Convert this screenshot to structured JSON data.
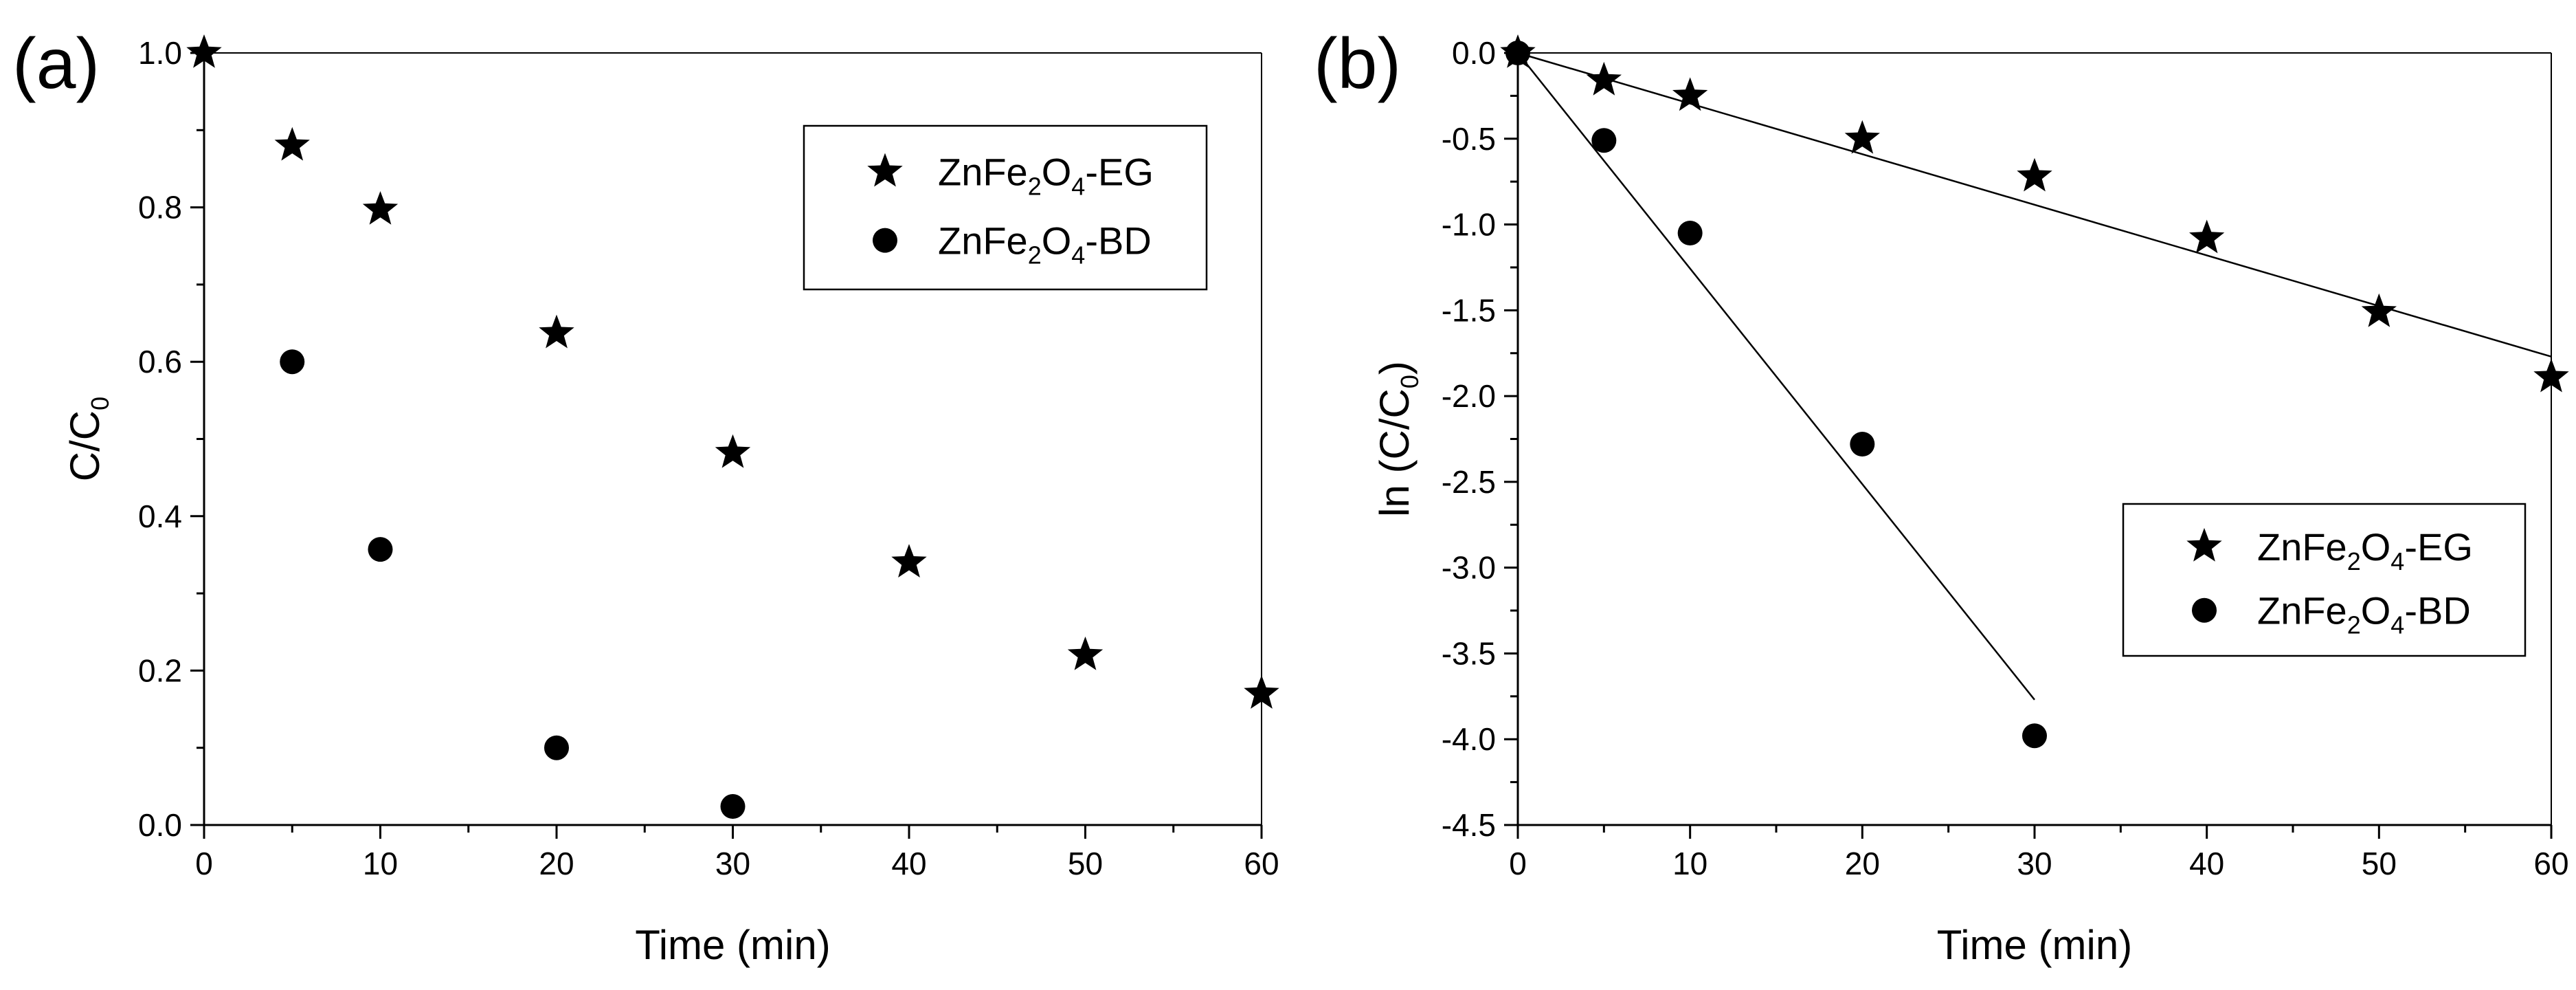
{
  "chart_data": [
    {
      "type": "scatter",
      "panel_label": "(a)",
      "title": "",
      "xlabel": "Time (min)",
      "ylabel": "C/C0",
      "ylabel_parts": {
        "base": "C/C",
        "sub": "0"
      },
      "xlim": [
        0,
        60
      ],
      "ylim": [
        0,
        1.0
      ],
      "xticks": [
        0,
        10,
        20,
        30,
        40,
        50,
        60
      ],
      "yticks": [
        0.0,
        0.2,
        0.4,
        0.6,
        0.8,
        1.0
      ],
      "xtick_labels": [
        "0",
        "10",
        "20",
        "30",
        "40",
        "50",
        "60"
      ],
      "ytick_labels": [
        "0.0",
        "0.2",
        "0.4",
        "0.6",
        "0.8",
        "1.0"
      ],
      "legend_position": "top-right",
      "series": [
        {
          "name": "ZnFe2O4-EG",
          "label_parts": [
            "ZnFe",
            "2",
            "O",
            "4",
            "-EG"
          ],
          "marker": "star",
          "x": [
            0,
            5,
            10,
            20,
            30,
            40,
            50,
            60
          ],
          "y": [
            1.0,
            0.88,
            0.797,
            0.637,
            0.482,
            0.34,
            0.22,
            0.17
          ]
        },
        {
          "name": "ZnFe2O4-BD",
          "label_parts": [
            "ZnFe",
            "2",
            "O",
            "4",
            "-BD"
          ],
          "marker": "circle",
          "x": [
            5,
            10,
            20,
            30
          ],
          "y": [
            0.6,
            0.357,
            0.1,
            0.024
          ]
        }
      ]
    },
    {
      "type": "scatter",
      "panel_label": "(b)",
      "title": "",
      "xlabel": "Time (min)",
      "ylabel": "ln (C/C0)",
      "ylabel_parts": {
        "base": "ln (C/C",
        "sub": "0",
        "end": ")"
      },
      "xlim": [
        0,
        60
      ],
      "ylim": [
        -4.5,
        0.0
      ],
      "xticks": [
        0,
        10,
        20,
        30,
        40,
        50,
        60
      ],
      "yticks": [
        0.0,
        -0.5,
        -1.0,
        -1.5,
        -2.0,
        -2.5,
        -3.0,
        -3.5,
        -4.0,
        -4.5
      ],
      "xtick_labels": [
        "0",
        "10",
        "20",
        "30",
        "40",
        "50",
        "60"
      ],
      "ytick_labels": [
        "0.0",
        "-0.5",
        "-1.0",
        "-1.5",
        "-2.0",
        "-2.5",
        "-3.0",
        "-3.5",
        "-4.0",
        "-4.5"
      ],
      "legend_position": "bottom-right",
      "series": [
        {
          "name": "ZnFe2O4-EG",
          "label_parts": [
            "ZnFe",
            "2",
            "O",
            "4",
            "-EG"
          ],
          "marker": "star",
          "x": [
            0,
            5,
            10,
            20,
            30,
            40,
            50,
            60
          ],
          "y": [
            0.0,
            -0.16,
            -0.25,
            -0.5,
            -0.72,
            -1.08,
            -1.51,
            -1.89
          ],
          "fit": {
            "x": [
              0,
              60
            ],
            "y": [
              0.0,
              -1.77
            ]
          }
        },
        {
          "name": "ZnFe2O4-BD",
          "label_parts": [
            "ZnFe",
            "2",
            "O",
            "4",
            "-BD"
          ],
          "marker": "circle",
          "x": [
            0,
            5,
            10,
            20,
            30
          ],
          "y": [
            0.0,
            -0.51,
            -1.05,
            -2.28,
            -3.98
          ],
          "fit": {
            "x": [
              0,
              30
            ],
            "y": [
              0.0,
              -3.77
            ]
          }
        }
      ]
    }
  ]
}
